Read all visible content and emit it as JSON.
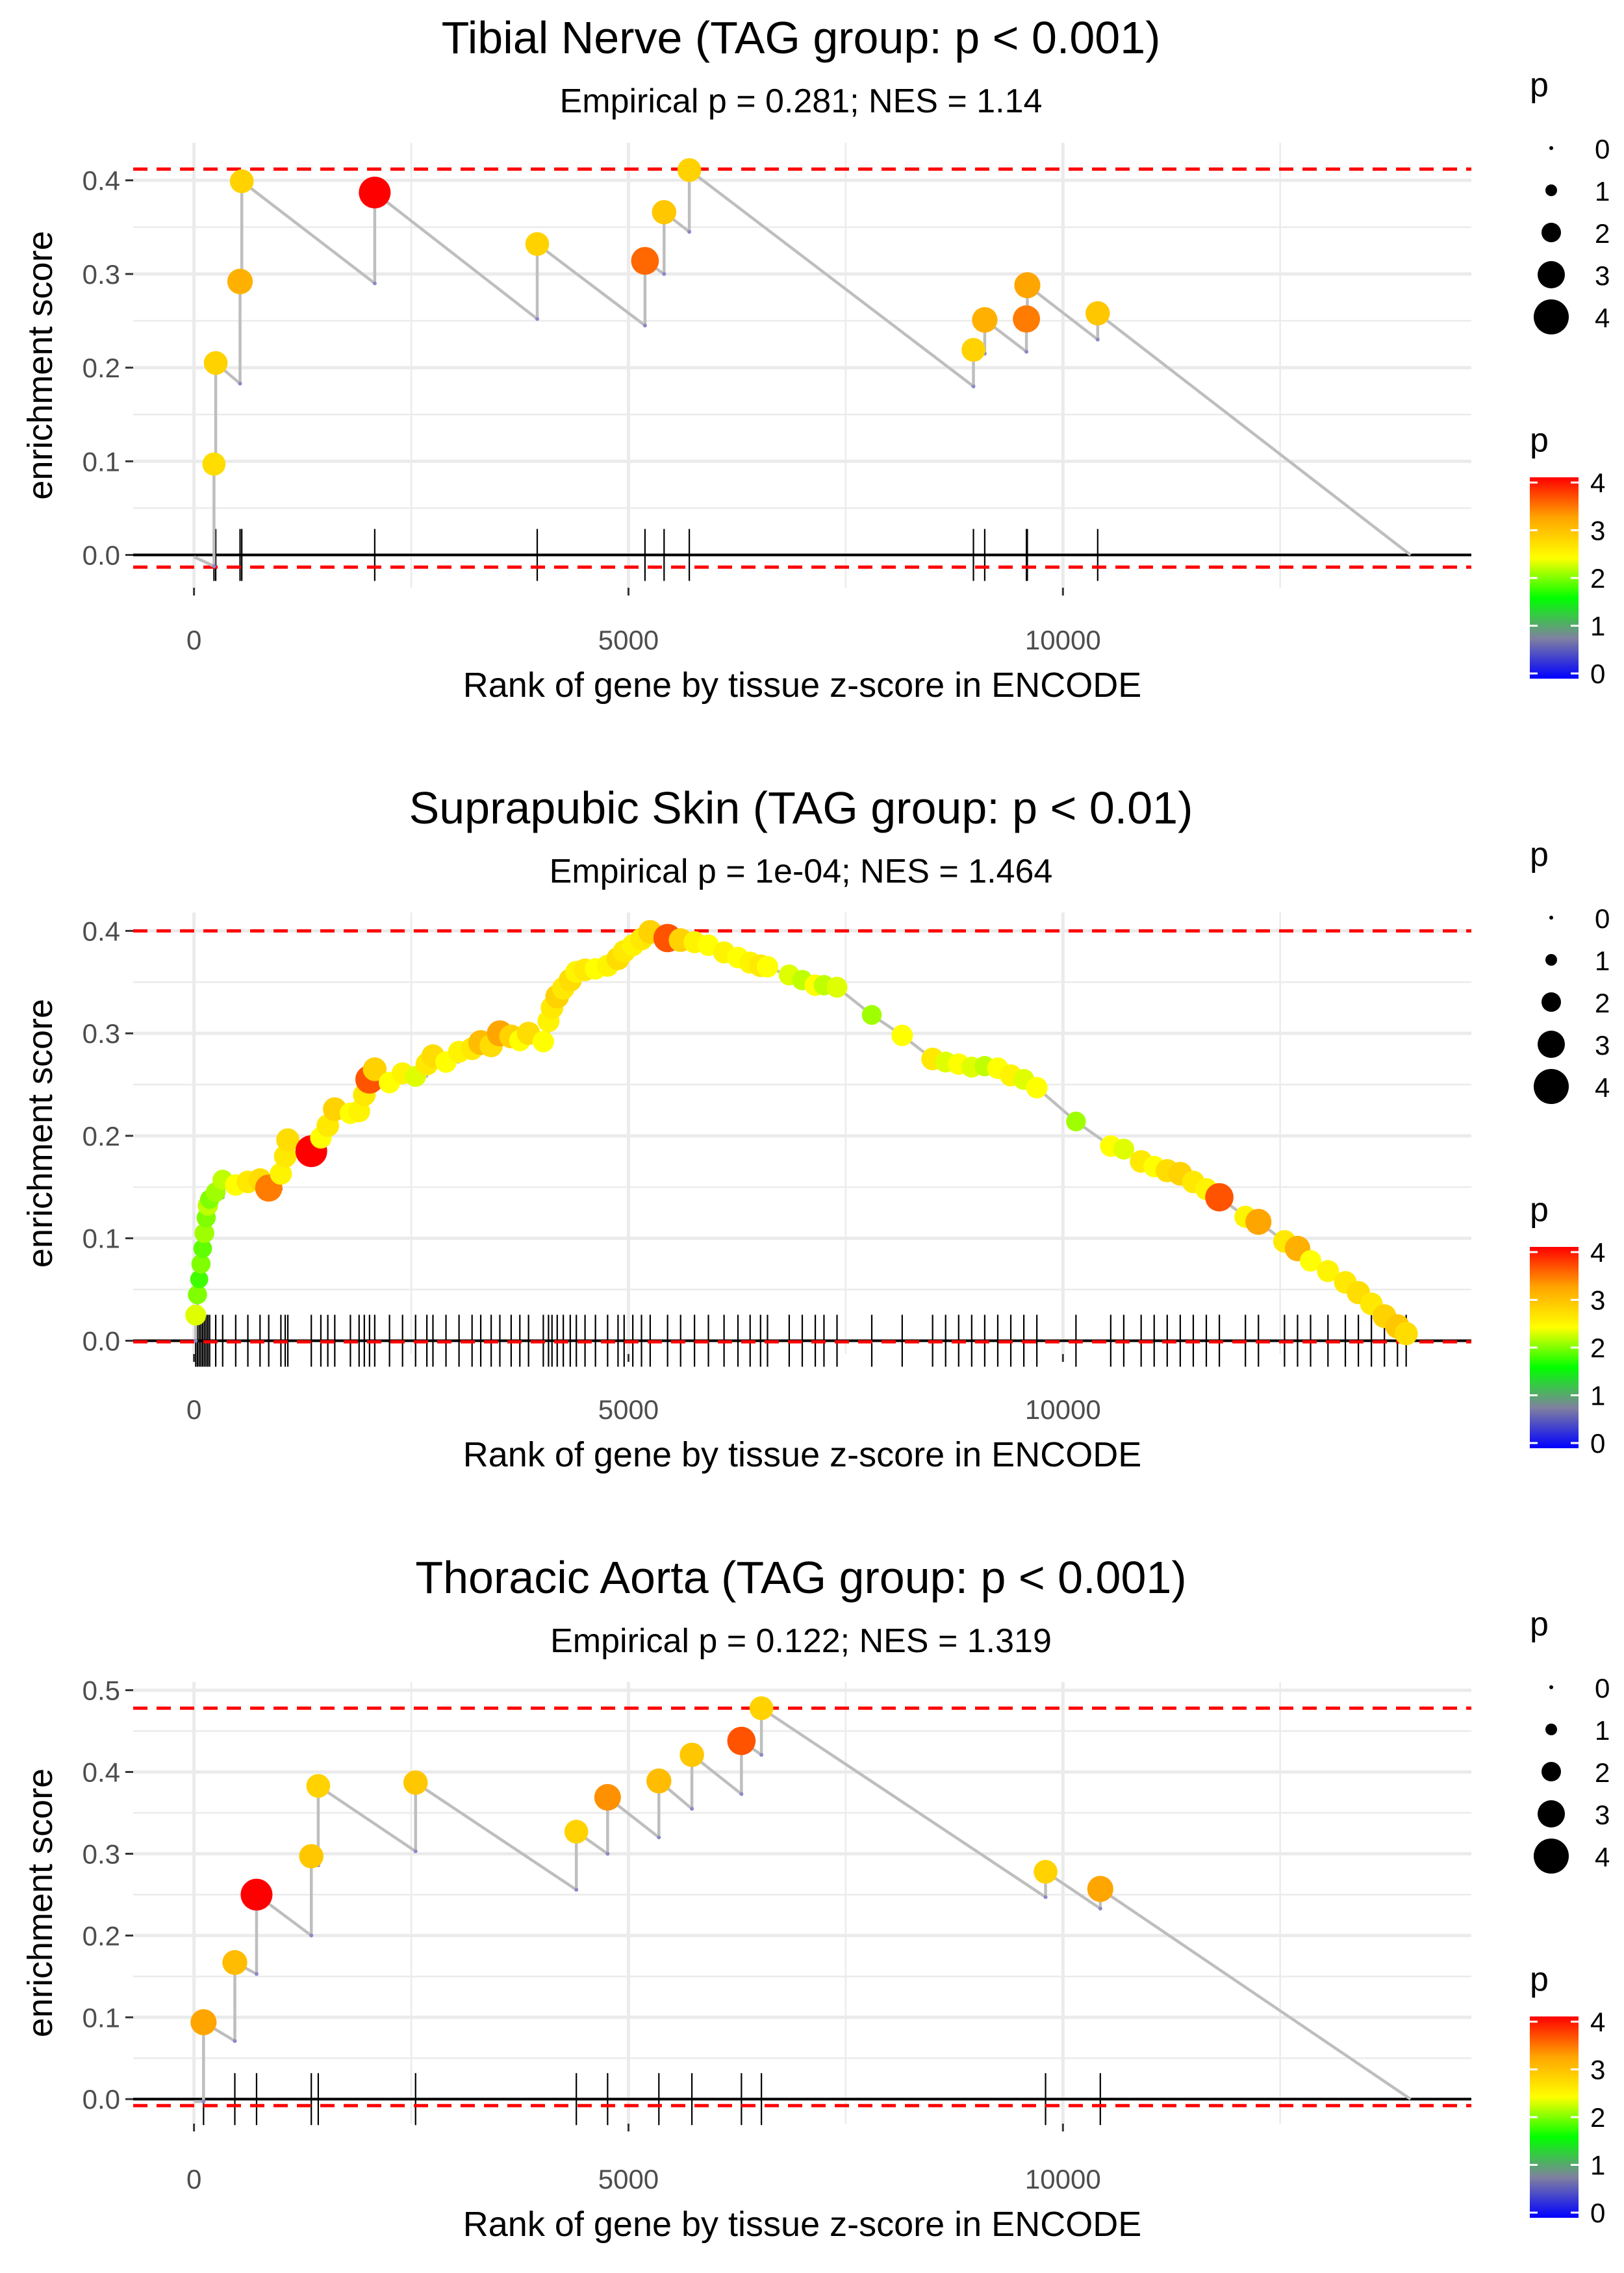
{
  "chart_data": [
    {
      "id": "tibial",
      "type": "enrichment-line",
      "title": "Tibial Nerve (TAG group: p < 0.001)",
      "subtitle": "Empirical p = 0.281; NES = 1.14",
      "xlabel": "Rank of gene by tissue z-score in ENCODE",
      "ylabel": "enrichment score",
      "xlim": [
        -700,
        14700
      ],
      "ylim": [
        -0.035,
        0.44
      ],
      "x_ticks": [
        0,
        5000,
        10000
      ],
      "y_ticks": [
        0.0,
        0.1,
        0.2,
        0.3,
        0.4
      ],
      "y_tick_labels": [
        "0.0",
        "0.1",
        "0.2",
        "0.3",
        "0.4"
      ],
      "dashed_max": 0.412,
      "dashed_min": -0.013,
      "x_end": 14000,
      "es_start": -0.002,
      "hits": [
        {
          "x": 230,
          "pre": -0.012,
          "es": 0.097,
          "p": 2.7
        },
        {
          "x": 250,
          "pre": 0.097,
          "es": 0.205,
          "p": 2.8
        },
        {
          "x": 530,
          "pre": 0.183,
          "es": 0.292,
          "p": 3.1
        },
        {
          "x": 550,
          "pre": 0.292,
          "es": 0.399,
          "p": 2.8
        },
        {
          "x": 2080,
          "pre": 0.29,
          "es": 0.387,
          "p": 4.2
        },
        {
          "x": 3950,
          "pre": 0.252,
          "es": 0.332,
          "p": 2.8
        },
        {
          "x": 5190,
          "pre": 0.245,
          "es": 0.314,
          "p": 3.5
        },
        {
          "x": 5410,
          "pre": 0.3,
          "es": 0.366,
          "p": 2.9
        },
        {
          "x": 5700,
          "pre": 0.345,
          "es": 0.411,
          "p": 2.8
        },
        {
          "x": 8970,
          "pre": 0.18,
          "es": 0.219,
          "p": 2.8
        },
        {
          "x": 9100,
          "pre": 0.215,
          "es": 0.251,
          "p": 3.1
        },
        {
          "x": 9580,
          "pre": 0.217,
          "es": 0.252,
          "p": 3.4
        },
        {
          "x": 9590,
          "pre": 0.252,
          "es": 0.288,
          "p": 3.2
        },
        {
          "x": 10400,
          "pre": 0.23,
          "es": 0.258,
          "p": 2.9
        }
      ],
      "rug": [
        230,
        250,
        530,
        550,
        2080,
        3950,
        5190,
        5410,
        5700,
        8970,
        9100,
        9580,
        9590,
        10400
      ]
    },
    {
      "id": "skin",
      "type": "enrichment-line",
      "title": "Suprapubic Skin (TAG group: p < 0.01)",
      "subtitle": "Empirical p = 1e-04; NES = 1.464",
      "xlabel": "Rank of gene by tissue z-score in ENCODE",
      "ylabel": "enrichment score",
      "xlim": [
        -700,
        14700
      ],
      "ylim": [
        -0.013,
        0.418
      ],
      "x_ticks": [
        0,
        5000,
        10000
      ],
      "y_ticks": [
        0.0,
        0.1,
        0.2,
        0.3,
        0.4
      ],
      "y_tick_labels": [
        "0.0",
        "0.1",
        "0.2",
        "0.3",
        "0.4"
      ],
      "dashed_max": 0.4,
      "dashed_min": -0.001,
      "x_end": 14000,
      "es_start": 0.0,
      "hits": [
        {
          "x": 20,
          "pre": 0.0,
          "es": 0.025,
          "p": 2.3
        },
        {
          "x": 40,
          "pre": 0.025,
          "es": 0.045,
          "p": 2.0
        },
        {
          "x": 60,
          "pre": 0.045,
          "es": 0.06,
          "p": 1.8
        },
        {
          "x": 80,
          "pre": 0.06,
          "es": 0.075,
          "p": 2.0
        },
        {
          "x": 100,
          "pre": 0.075,
          "es": 0.09,
          "p": 1.9
        },
        {
          "x": 120,
          "pre": 0.09,
          "es": 0.105,
          "p": 2.1
        },
        {
          "x": 140,
          "pre": 0.105,
          "es": 0.12,
          "p": 2.0
        },
        {
          "x": 160,
          "pre": 0.12,
          "es": 0.132,
          "p": 2.2
        },
        {
          "x": 180,
          "pre": 0.132,
          "es": 0.138,
          "p": 2.0
        },
        {
          "x": 250,
          "pre": 0.133,
          "es": 0.145,
          "p": 2.1
        },
        {
          "x": 330,
          "pre": 0.14,
          "es": 0.157,
          "p": 2.2
        },
        {
          "x": 480,
          "pre": 0.145,
          "es": 0.152,
          "p": 2.4
        },
        {
          "x": 620,
          "pre": 0.146,
          "es": 0.155,
          "p": 2.6
        },
        {
          "x": 760,
          "pre": 0.15,
          "es": 0.157,
          "p": 2.7
        },
        {
          "x": 860,
          "pre": 0.152,
          "es": 0.149,
          "p": 3.4
        },
        {
          "x": 1000,
          "pre": 0.148,
          "es": 0.163,
          "p": 2.5
        },
        {
          "x": 1050,
          "pre": 0.163,
          "es": 0.18,
          "p": 2.6
        },
        {
          "x": 1080,
          "pre": 0.18,
          "es": 0.196,
          "p": 2.7
        },
        {
          "x": 1350,
          "pre": 0.18,
          "es": 0.185,
          "p": 4.2
        },
        {
          "x": 1460,
          "pre": 0.185,
          "es": 0.198,
          "p": 2.4
        },
        {
          "x": 1540,
          "pre": 0.198,
          "es": 0.21,
          "p": 2.6
        },
        {
          "x": 1620,
          "pre": 0.21,
          "es": 0.226,
          "p": 2.8
        },
        {
          "x": 1800,
          "pre": 0.22,
          "es": 0.222,
          "p": 2.4
        },
        {
          "x": 1900,
          "pre": 0.222,
          "es": 0.224,
          "p": 2.5
        },
        {
          "x": 1960,
          "pre": 0.224,
          "es": 0.24,
          "p": 2.6
        },
        {
          "x": 2020,
          "pre": 0.24,
          "es": 0.255,
          "p": 3.6
        },
        {
          "x": 2080,
          "pre": 0.255,
          "es": 0.265,
          "p": 2.8
        },
        {
          "x": 2250,
          "pre": 0.258,
          "es": 0.252,
          "p": 2.4
        },
        {
          "x": 2400,
          "pre": 0.252,
          "es": 0.261,
          "p": 2.5
        },
        {
          "x": 2550,
          "pre": 0.255,
          "es": 0.258,
          "p": 2.3
        },
        {
          "x": 2680,
          "pre": 0.258,
          "es": 0.27,
          "p": 2.6
        },
        {
          "x": 2750,
          "pre": 0.27,
          "es": 0.278,
          "p": 2.7
        },
        {
          "x": 2900,
          "pre": 0.275,
          "es": 0.272,
          "p": 2.4
        },
        {
          "x": 3050,
          "pre": 0.272,
          "es": 0.282,
          "p": 2.5
        },
        {
          "x": 3200,
          "pre": 0.278,
          "es": 0.285,
          "p": 2.6
        },
        {
          "x": 3300,
          "pre": 0.285,
          "es": 0.291,
          "p": 3.0
        },
        {
          "x": 3420,
          "pre": 0.288,
          "es": 0.288,
          "p": 2.7
        },
        {
          "x": 3520,
          "pre": 0.288,
          "es": 0.3,
          "p": 3.2
        },
        {
          "x": 3650,
          "pre": 0.295,
          "es": 0.297,
          "p": 2.8
        },
        {
          "x": 3750,
          "pre": 0.297,
          "es": 0.293,
          "p": 2.4
        },
        {
          "x": 3850,
          "pre": 0.293,
          "es": 0.3,
          "p": 2.7
        },
        {
          "x": 4020,
          "pre": 0.285,
          "es": 0.292,
          "p": 2.4
        },
        {
          "x": 4080,
          "pre": 0.292,
          "es": 0.312,
          "p": 2.5
        },
        {
          "x": 4120,
          "pre": 0.312,
          "es": 0.325,
          "p": 2.6
        },
        {
          "x": 4180,
          "pre": 0.325,
          "es": 0.336,
          "p": 2.8
        },
        {
          "x": 4250,
          "pre": 0.336,
          "es": 0.344,
          "p": 2.6
        },
        {
          "x": 4330,
          "pre": 0.344,
          "es": 0.352,
          "p": 2.7
        },
        {
          "x": 4400,
          "pre": 0.352,
          "es": 0.36,
          "p": 2.5
        },
        {
          "x": 4500,
          "pre": 0.358,
          "es": 0.362,
          "p": 2.6
        },
        {
          "x": 4620,
          "pre": 0.359,
          "es": 0.363,
          "p": 2.4
        },
        {
          "x": 4760,
          "pre": 0.36,
          "es": 0.366,
          "p": 2.5
        },
        {
          "x": 4880,
          "pre": 0.363,
          "es": 0.373,
          "p": 2.7
        },
        {
          "x": 4950,
          "pre": 0.373,
          "es": 0.38,
          "p": 2.6
        },
        {
          "x": 5050,
          "pre": 0.38,
          "es": 0.386,
          "p": 2.5
        },
        {
          "x": 5150,
          "pre": 0.386,
          "es": 0.392,
          "p": 2.6
        },
        {
          "x": 5250,
          "pre": 0.392,
          "es": 0.399,
          "p": 2.8
        },
        {
          "x": 5450,
          "pre": 0.391,
          "es": 0.393,
          "p": 3.6
        },
        {
          "x": 5600,
          "pre": 0.393,
          "es": 0.391,
          "p": 2.8
        },
        {
          "x": 5760,
          "pre": 0.387,
          "es": 0.389,
          "p": 2.5
        },
        {
          "x": 5920,
          "pre": 0.385,
          "es": 0.386,
          "p": 2.4
        },
        {
          "x": 6100,
          "pre": 0.379,
          "es": 0.379,
          "p": 2.5
        },
        {
          "x": 6260,
          "pre": 0.374,
          "es": 0.374,
          "p": 2.4
        },
        {
          "x": 6400,
          "pre": 0.369,
          "es": 0.369,
          "p": 2.5
        },
        {
          "x": 6520,
          "pre": 0.366,
          "es": 0.366,
          "p": 2.6
        },
        {
          "x": 6600,
          "pre": 0.364,
          "es": 0.365,
          "p": 2.4
        },
        {
          "x": 6850,
          "pre": 0.356,
          "es": 0.357,
          "p": 2.3
        },
        {
          "x": 7000,
          "pre": 0.352,
          "es": 0.352,
          "p": 2.2
        },
        {
          "x": 7150,
          "pre": 0.347,
          "es": 0.347,
          "p": 2.4
        },
        {
          "x": 7250,
          "pre": 0.345,
          "es": 0.347,
          "p": 2.2
        },
        {
          "x": 7400,
          "pre": 0.344,
          "es": 0.345,
          "p": 2.3
        },
        {
          "x": 7800,
          "pre": 0.318,
          "es": 0.318,
          "p": 2.1
        },
        {
          "x": 8150,
          "pre": 0.298,
          "es": 0.298,
          "p": 2.4
        },
        {
          "x": 8500,
          "pre": 0.275,
          "es": 0.275,
          "p": 2.6
        },
        {
          "x": 8650,
          "pre": 0.272,
          "es": 0.272,
          "p": 2.3
        },
        {
          "x": 8800,
          "pre": 0.27,
          "es": 0.27,
          "p": 2.4
        },
        {
          "x": 8950,
          "pre": 0.267,
          "es": 0.267,
          "p": 2.3
        },
        {
          "x": 9100,
          "pre": 0.268,
          "es": 0.268,
          "p": 2.2
        },
        {
          "x": 9250,
          "pre": 0.266,
          "es": 0.266,
          "p": 2.4
        },
        {
          "x": 9400,
          "pre": 0.259,
          "es": 0.259,
          "p": 2.5
        },
        {
          "x": 9550,
          "pre": 0.255,
          "es": 0.255,
          "p": 2.3
        },
        {
          "x": 9700,
          "pre": 0.247,
          "es": 0.247,
          "p": 2.4
        },
        {
          "x": 10150,
          "pre": 0.214,
          "es": 0.214,
          "p": 2.1
        },
        {
          "x": 10550,
          "pre": 0.19,
          "es": 0.19,
          "p": 2.4
        },
        {
          "x": 10700,
          "pre": 0.187,
          "es": 0.187,
          "p": 2.3
        },
        {
          "x": 10900,
          "pre": 0.175,
          "es": 0.175,
          "p": 2.6
        },
        {
          "x": 11050,
          "pre": 0.17,
          "es": 0.17,
          "p": 2.4
        },
        {
          "x": 11200,
          "pre": 0.166,
          "es": 0.166,
          "p": 2.7
        },
        {
          "x": 11350,
          "pre": 0.163,
          "es": 0.163,
          "p": 2.8
        },
        {
          "x": 11500,
          "pre": 0.155,
          "es": 0.155,
          "p": 2.6
        },
        {
          "x": 11650,
          "pre": 0.148,
          "es": 0.148,
          "p": 2.5
        },
        {
          "x": 11800,
          "pre": 0.14,
          "es": 0.14,
          "p": 3.6
        },
        {
          "x": 12100,
          "pre": 0.121,
          "es": 0.121,
          "p": 2.5
        },
        {
          "x": 12250,
          "pre": 0.116,
          "es": 0.116,
          "p": 3.2
        },
        {
          "x": 12550,
          "pre": 0.097,
          "es": 0.097,
          "p": 2.6
        },
        {
          "x": 12700,
          "pre": 0.09,
          "es": 0.09,
          "p": 3.1
        },
        {
          "x": 12850,
          "pre": 0.078,
          "es": 0.078,
          "p": 2.4
        },
        {
          "x": 13050,
          "pre": 0.068,
          "es": 0.068,
          "p": 2.5
        },
        {
          "x": 13250,
          "pre": 0.057,
          "es": 0.057,
          "p": 2.6
        },
        {
          "x": 13400,
          "pre": 0.047,
          "es": 0.047,
          "p": 2.7
        },
        {
          "x": 13550,
          "pre": 0.036,
          "es": 0.036,
          "p": 2.6
        },
        {
          "x": 13700,
          "pre": 0.024,
          "es": 0.024,
          "p": 2.8
        },
        {
          "x": 13850,
          "pre": 0.014,
          "es": 0.014,
          "p": 2.9
        },
        {
          "x": 13950,
          "pre": 0.007,
          "es": 0.007,
          "p": 2.7
        }
      ],
      "rug": [
        20,
        40,
        60,
        80,
        100,
        120,
        140,
        160,
        180,
        250,
        330,
        480,
        620,
        760,
        860,
        1000,
        1050,
        1080,
        1350,
        1460,
        1540,
        1620,
        1800,
        1900,
        1960,
        2020,
        2080,
        2250,
        2400,
        2550,
        2680,
        2750,
        2900,
        3050,
        3200,
        3300,
        3420,
        3520,
        3650,
        3750,
        3850,
        4020,
        4080,
        4120,
        4180,
        4250,
        4330,
        4400,
        4500,
        4620,
        4760,
        4880,
        4950,
        5050,
        5150,
        5250,
        5450,
        5600,
        5760,
        5920,
        6100,
        6260,
        6400,
        6520,
        6600,
        6850,
        7000,
        7150,
        7250,
        7400,
        7800,
        8150,
        8500,
        8650,
        8800,
        8950,
        9100,
        9250,
        9400,
        9550,
        9700,
        10150,
        10550,
        10700,
        10900,
        11050,
        11200,
        11350,
        11500,
        11650,
        11800,
        12100,
        12250,
        12550,
        12700,
        12850,
        13050,
        13250,
        13400,
        13550,
        13700,
        13850,
        13950
      ]
    },
    {
      "id": "aorta",
      "type": "enrichment-line",
      "title": "Thoracic Aorta (TAG group: p < 0.001)",
      "subtitle": "Empirical p = 0.122; NES = 1.319",
      "xlabel": "Rank of gene by tissue z-score in ENCODE",
      "ylabel": "enrichment score",
      "xlim": [
        -700,
        14700
      ],
      "ylim": [
        -0.03,
        0.51
      ],
      "x_ticks": [
        0,
        5000,
        10000
      ],
      "y_ticks": [
        0.0,
        0.1,
        0.2,
        0.3,
        0.4,
        0.5
      ],
      "y_tick_labels": [
        "0.0",
        "0.1",
        "0.2",
        "0.3",
        "0.4",
        "0.5"
      ],
      "dashed_max": 0.478,
      "dashed_min": -0.008,
      "x_end": 14000,
      "es_start": -0.003,
      "hits": [
        {
          "x": 110,
          "pre": -0.003,
          "es": 0.094,
          "p": 3.2
        },
        {
          "x": 470,
          "pre": 0.071,
          "es": 0.167,
          "p": 3.0
        },
        {
          "x": 720,
          "pre": 0.153,
          "es": 0.25,
          "p": 4.2
        },
        {
          "x": 1350,
          "pre": 0.2,
          "es": 0.297,
          "p": 2.9
        },
        {
          "x": 1430,
          "pre": 0.286,
          "es": 0.383,
          "p": 2.8
        },
        {
          "x": 2550,
          "pre": 0.303,
          "es": 0.387,
          "p": 2.9
        },
        {
          "x": 4400,
          "pre": 0.256,
          "es": 0.327,
          "p": 2.8
        },
        {
          "x": 4760,
          "pre": 0.3,
          "es": 0.369,
          "p": 3.3
        },
        {
          "x": 5350,
          "pre": 0.32,
          "es": 0.389,
          "p": 3.0
        },
        {
          "x": 5730,
          "pre": 0.355,
          "es": 0.421,
          "p": 2.9
        },
        {
          "x": 6300,
          "pre": 0.373,
          "es": 0.438,
          "p": 3.6
        },
        {
          "x": 6530,
          "pre": 0.421,
          "es": 0.478,
          "p": 2.8
        },
        {
          "x": 9800,
          "pre": 0.247,
          "es": 0.278,
          "p": 2.8
        },
        {
          "x": 10430,
          "pre": 0.233,
          "es": 0.257,
          "p": 3.2
        }
      ],
      "rug": [
        110,
        470,
        720,
        1350,
        1430,
        2550,
        4400,
        4760,
        5350,
        5730,
        6300,
        6530,
        9800,
        10430
      ]
    }
  ],
  "legend": {
    "size_title": "p",
    "size_labels": [
      "0",
      "1",
      "2",
      "3",
      "4"
    ],
    "size_values": [
      0,
      1,
      2,
      3,
      4
    ],
    "color_title": "p",
    "color_labels": [
      "4",
      "3",
      "2",
      "1",
      "0"
    ],
    "color_values": [
      4,
      3,
      2,
      1,
      0
    ],
    "color_stops": [
      "#0000FF",
      "#8080A0",
      "#00FF00",
      "#FFFF00",
      "#FFA500",
      "#FF0000"
    ]
  },
  "colors": {
    "line": "#BEBEBE",
    "dashed": "#FF0000",
    "grid": "#EBEBEB",
    "axis": "#000000"
  }
}
